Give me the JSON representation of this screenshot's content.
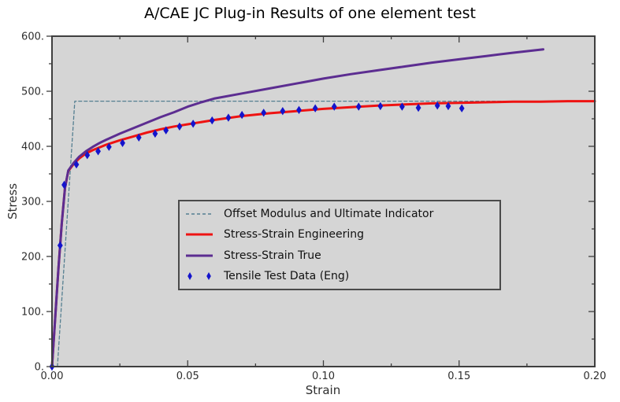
{
  "title": "A/CAE JC Plug-in Results of one element test",
  "axes": {
    "xlabel": "Strain",
    "ylabel": "Stress",
    "xlim": [
      0,
      0.2
    ],
    "ylim": [
      0,
      600
    ],
    "x_major_ticks": [
      {
        "value": 0.0,
        "label": "0.00"
      },
      {
        "value": 0.05,
        "label": "0.05"
      },
      {
        "value": 0.1,
        "label": "0.10"
      },
      {
        "value": 0.15,
        "label": "0.15"
      },
      {
        "value": 0.2,
        "label": "0.20"
      }
    ],
    "x_minor_ticks": [
      0.025,
      0.075,
      0.125,
      0.175
    ],
    "y_major_ticks": [
      {
        "value": 0,
        "label": "0."
      },
      {
        "value": 100,
        "label": "100."
      },
      {
        "value": 200,
        "label": "200."
      },
      {
        "value": 300,
        "label": "300."
      },
      {
        "value": 400,
        "label": "400."
      },
      {
        "value": 500,
        "label": "500."
      },
      {
        "value": 600,
        "label": "600."
      }
    ],
    "y_minor_ticks": [
      50,
      150,
      250,
      350,
      450,
      550
    ]
  },
  "colors": {
    "figure_bg": "#ffffff",
    "plot_bg": "#d5d5d5",
    "spine": "#3f3f3f",
    "tick_label": "#2e2e2e",
    "title_color": "#000000",
    "offset_dashed": "#557f91",
    "engineering": "#ee1312",
    "true_curve": "#5c2d91",
    "tensile_marker": "#1414cc",
    "legend_border": "#4a4a4a",
    "legend_bg": "#d5d5d5"
  },
  "legend": {
    "items": [
      {
        "label": "Offset Modulus and Ultimate Indicator",
        "sample": "dashed",
        "color_key": "offset_dashed"
      },
      {
        "label": "Stress-Strain Engineering",
        "sample": "line",
        "color_key": "engineering"
      },
      {
        "label": "Stress-Strain True",
        "sample": "line",
        "color_key": "true_curve"
      },
      {
        "label": "Tensile Test Data (Eng)",
        "sample": "markers",
        "color_key": "tensile_marker"
      }
    ]
  },
  "chart_data": {
    "type": "line",
    "title": "A/CAE JC Plug-in Results of one element test",
    "xlabel": "Strain",
    "ylabel": "Stress",
    "xlim": [
      0,
      0.2
    ],
    "ylim": [
      0,
      600
    ],
    "grid": false,
    "legend_position": "center",
    "series": [
      {
        "name": "Offset Modulus and Ultimate Indicator",
        "style": "dashed",
        "color_key": "offset_dashed",
        "x": [
          0.002,
          0.0084,
          0.2
        ],
        "y": [
          0,
          482,
          482
        ]
      },
      {
        "name": "Stress-Strain Engineering",
        "style": "solid",
        "color_key": "engineering",
        "x": [
          0,
          0.0012,
          0.0024,
          0.0036,
          0.0048,
          0.006,
          0.008,
          0.01,
          0.0125,
          0.015,
          0.0175,
          0.02,
          0.025,
          0.03,
          0.035,
          0.04,
          0.045,
          0.05,
          0.06,
          0.07,
          0.08,
          0.09,
          0.1,
          0.11,
          0.12,
          0.13,
          0.14,
          0.15,
          0.16,
          0.17,
          0.18,
          0.19,
          0.2
        ],
        "y": [
          0,
          90,
          180,
          260,
          325,
          355,
          368,
          378,
          387,
          393,
          398,
          403,
          411,
          418,
          425,
          431,
          436,
          440,
          448,
          455,
          460,
          464,
          468,
          471,
          474,
          476,
          478,
          479,
          480,
          481,
          481,
          482,
          482
        ]
      },
      {
        "name": "Stress-Strain True",
        "style": "solid",
        "color_key": "true_curve",
        "x": [
          0,
          0.0012,
          0.0024,
          0.0036,
          0.0048,
          0.006,
          0.008,
          0.01,
          0.0125,
          0.015,
          0.0175,
          0.02,
          0.025,
          0.03,
          0.035,
          0.04,
          0.045,
          0.05,
          0.055,
          0.06,
          0.07,
          0.08,
          0.09,
          0.1,
          0.11,
          0.12,
          0.13,
          0.14,
          0.15,
          0.16,
          0.17,
          0.181
        ],
        "y": [
          0,
          90,
          180,
          260,
          325,
          356,
          370,
          381,
          391,
          399,
          406,
          412,
          423,
          433,
          443,
          453,
          462,
          472,
          480,
          487,
          496,
          505,
          514,
          523,
          531,
          538,
          545,
          552,
          558,
          564,
          570,
          576
        ]
      },
      {
        "name": "Tensile Test Data (Eng)",
        "style": "scatter-diamond",
        "color_key": "tensile_marker",
        "x": [
          0.0,
          0.003,
          0.0045,
          0.009,
          0.013,
          0.017,
          0.021,
          0.026,
          0.032,
          0.038,
          0.042,
          0.047,
          0.052,
          0.059,
          0.065,
          0.07,
          0.078,
          0.085,
          0.091,
          0.097,
          0.104,
          0.113,
          0.121,
          0.129,
          0.135,
          0.142,
          0.146,
          0.151
        ],
        "y": [
          0,
          220,
          330,
          367,
          384,
          391,
          399,
          406,
          416,
          423,
          429,
          436,
          441,
          447,
          452,
          457,
          461,
          464,
          466,
          469,
          472,
          472,
          473,
          472,
          470,
          474,
          473,
          469
        ]
      }
    ]
  }
}
